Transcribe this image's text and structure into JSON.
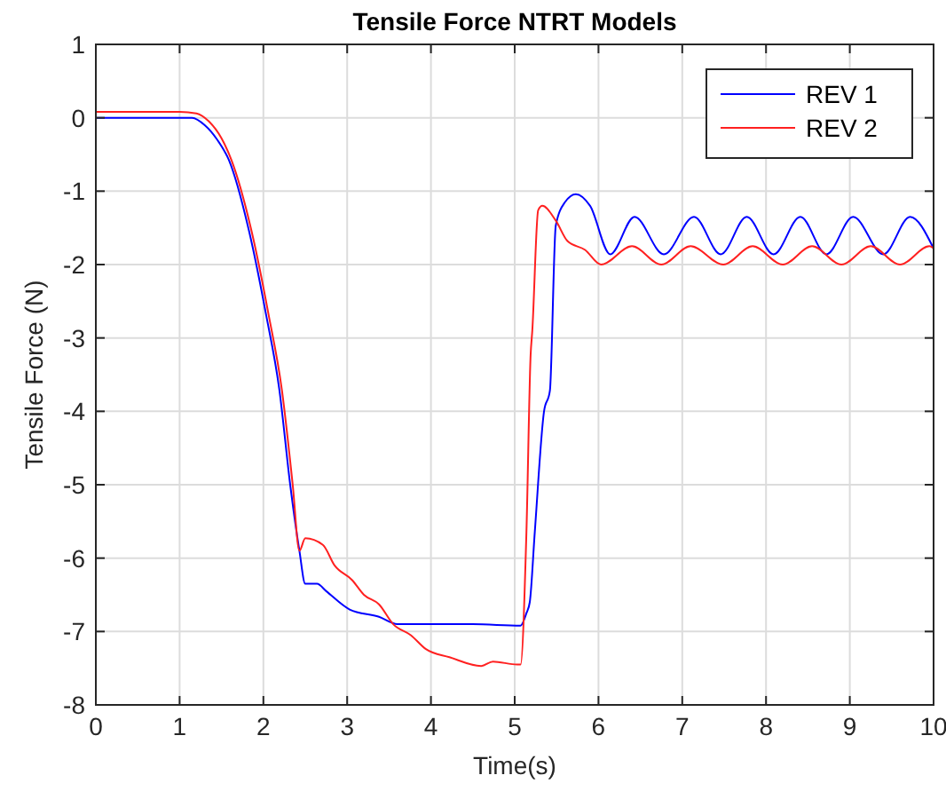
{
  "chart_data": {
    "type": "line",
    "title": "Tensile Force NTRT Models",
    "xlabel": "Time(s)",
    "ylabel": "Tensile Force (N)",
    "xlim": [
      0,
      10
    ],
    "xticks": [
      0,
      1,
      2,
      3,
      4,
      5,
      6,
      7,
      8,
      9,
      10
    ],
    "ylim": [
      -8,
      1
    ],
    "yticks": [
      -8,
      -7,
      -6,
      -5,
      -4,
      -3,
      -2,
      -1,
      0,
      1
    ],
    "grid": true,
    "legend": "top right",
    "line_style": "solid",
    "series": [
      {
        "name": "REV 1",
        "color": "#0000ff",
        "x": [
          0,
          0.5,
          1,
          1.15,
          1.3,
          1.45,
          1.59,
          1.83,
          2.03,
          2.19,
          2.32,
          2.43,
          2.5,
          2.64,
          2.75,
          3.03,
          3.38,
          3.6,
          4.5,
          5.07,
          5.14,
          5.18,
          5.24,
          5.35,
          5.42,
          5.49,
          5.6,
          5.73,
          5.9,
          6.14,
          6.43,
          6.78,
          7.14,
          7.46,
          7.77,
          8.09,
          8.41,
          8.72,
          9.04,
          9.4,
          9.72,
          10
        ],
        "values": [
          0,
          0,
          0,
          0,
          -0.1,
          -0.3,
          -0.58,
          -1.55,
          -2.67,
          -3.7,
          -5.0,
          -5.9,
          -6.35,
          -6.35,
          -6.45,
          -6.7,
          -6.8,
          -6.9,
          -6.9,
          -6.92,
          -6.75,
          -6.6,
          -5.64,
          -4.0,
          -3.72,
          -1.47,
          -1.15,
          -1.04,
          -1.2,
          -1.86,
          -1.35,
          -1.86,
          -1.35,
          -1.86,
          -1.35,
          -1.86,
          -1.35,
          -1.86,
          -1.35,
          -1.86,
          -1.35,
          -1.78
        ]
      },
      {
        "name": "REV 2",
        "color": "#ff2020",
        "x": [
          0,
          0.5,
          1,
          1.2,
          1.35,
          1.5,
          1.62,
          1.86,
          2.06,
          2.22,
          2.35,
          2.43,
          2.5,
          2.71,
          2.85,
          3.06,
          3.2,
          3.38,
          3.55,
          3.76,
          3.94,
          4.22,
          4.6,
          4.74,
          5.03,
          5.07,
          5.14,
          5.19,
          5.21,
          5.28,
          5.33,
          5.49,
          5.63,
          5.84,
          6.03,
          6.4,
          6.75,
          7.1,
          7.49,
          7.84,
          8.2,
          8.55,
          8.9,
          9.25,
          9.6,
          9.95,
          10
        ],
        "values": [
          0.08,
          0.08,
          0.08,
          0.06,
          -0.05,
          -0.28,
          -0.58,
          -1.55,
          -2.67,
          -3.7,
          -5.0,
          -5.9,
          -5.73,
          -5.82,
          -6.1,
          -6.3,
          -6.5,
          -6.63,
          -6.9,
          -7.05,
          -7.24,
          -7.35,
          -7.47,
          -7.41,
          -7.45,
          -7.45,
          -5.64,
          -3.23,
          -2.9,
          -1.26,
          -1.2,
          -1.4,
          -1.68,
          -1.8,
          -2.0,
          -1.75,
          -2.0,
          -1.75,
          -2.0,
          -1.75,
          -2.0,
          -1.75,
          -2.0,
          -1.75,
          -2.0,
          -1.75,
          -1.78
        ]
      }
    ]
  }
}
